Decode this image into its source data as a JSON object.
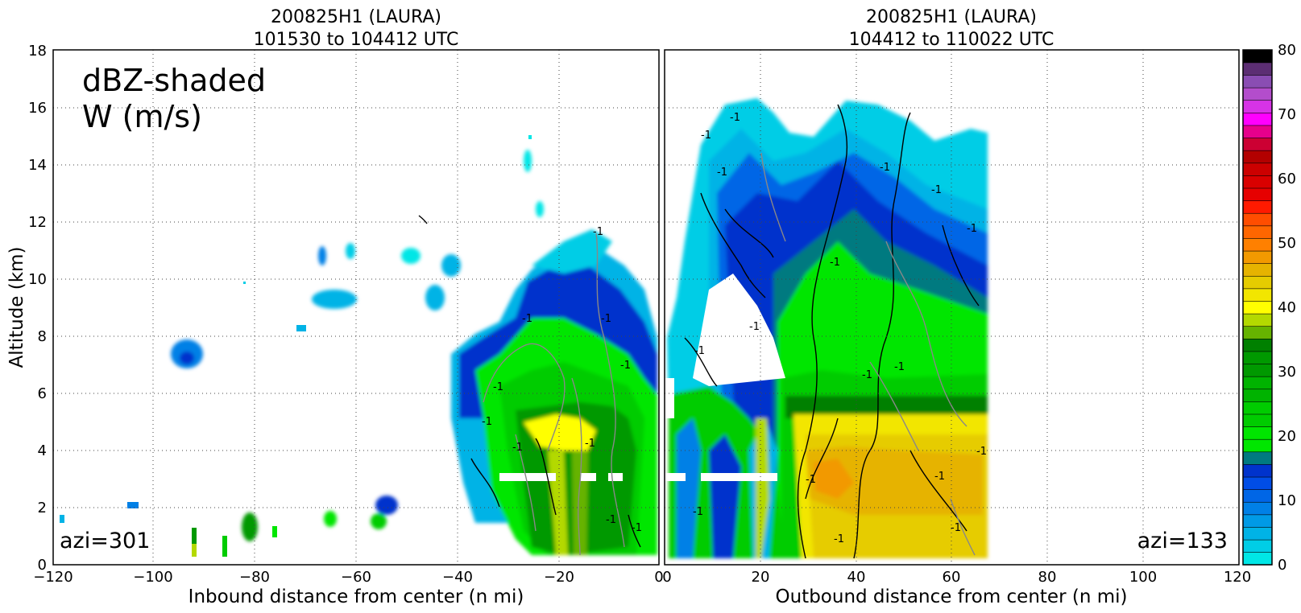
{
  "ylabel": "Altitude (km)",
  "colorbar": {
    "ticks": [
      0,
      10,
      20,
      30,
      40,
      50,
      60,
      70,
      80
    ],
    "colors": [
      "#00e6e6",
      "#00cde6",
      "#00b3e6",
      "#009ae6",
      "#0080e6",
      "#0066e6",
      "#004de6",
      "#0033cc",
      "#007a80",
      "#00e600",
      "#00e600",
      "#00cc00",
      "#00cc00",
      "#00b300",
      "#00b300",
      "#009900",
      "#009900",
      "#008000",
      "#66b300",
      "#b3d900",
      "#ffff00",
      "#f2e600",
      "#e6cc00",
      "#e6b300",
      "#f29900",
      "#ff8000",
      "#ff6600",
      "#ff4d00",
      "#ff1a00",
      "#e60000",
      "#d90000",
      "#cc0000",
      "#b30000",
      "#cc0033",
      "#e6008c",
      "#ff00ff",
      "#d633e6",
      "#b34dcc",
      "#8a4db3",
      "#5c2e73",
      "#000000"
    ]
  },
  "panels": [
    {
      "title1": "200825H1 (LAURA)",
      "title2": "101530 to 104412 UTC",
      "xlabel": "Inbound distance from center (n mi)",
      "annotation_main": "dBZ-shaded",
      "annotation_sub": "W (m/s)",
      "azi_label": "azi=301",
      "xticks": [
        "−120",
        "−100",
        "−80",
        "−60",
        "−40",
        "−20",
        "0"
      ],
      "contour_label": "-1"
    },
    {
      "title1": "200825H1 (LAURA)",
      "title2": "104412 to 110022 UTC",
      "xlabel": "Outbound distance from center (n mi)",
      "azi_label": "azi=133",
      "xticks": [
        "0",
        "20",
        "40",
        "60",
        "80",
        "100",
        "120"
      ],
      "contour_label": "-1"
    }
  ],
  "yticks": [
    "0",
    "2",
    "4",
    "6",
    "8",
    "10",
    "12",
    "14",
    "16",
    "18"
  ],
  "chart_data": [
    {
      "type": "heatmap",
      "title": "200825H1 (LAURA) 101530 to 104412 UTC",
      "xlabel": "Inbound distance from center (n mi)",
      "ylabel": "Altitude (km)",
      "xlim": [
        -120,
        0
      ],
      "ylim": [
        0,
        18
      ],
      "grid": true,
      "shaded_field": "dBZ",
      "contour_field": "W (m/s)",
      "radar_echoes": [
        {
          "x": [
            -36,
            0
          ],
          "y": [
            0.5,
            11.0
          ],
          "dbz_range": [
            10,
            38
          ]
        },
        {
          "x": [
            -93,
            -90
          ],
          "y": [
            6.8,
            7.8
          ],
          "dbz_range": [
            5,
            12
          ]
        },
        {
          "x": [
            -68,
            -62
          ],
          "y": [
            8.8,
            9.5
          ],
          "dbz_range": [
            3,
            8
          ]
        },
        {
          "x": [
            -56,
            -54
          ],
          "y": [
            1.2,
            2.5
          ],
          "dbz_range": [
            10,
            20
          ]
        }
      ],
      "bright_band_altitude_km": 5
    },
    {
      "type": "heatmap",
      "title": "200825H1 (LAURA) 104412 to 110022 UTC",
      "xlabel": "Outbound distance from center (n mi)",
      "ylabel": "Altitude (km)",
      "xlim": [
        0,
        120
      ],
      "ylim": [
        0,
        18
      ],
      "grid": true,
      "shaded_field": "dBZ",
      "contour_field": "W (m/s)",
      "radar_echoes": [
        {
          "x": [
            0,
            68
          ],
          "y": [
            0.3,
            16.2
          ],
          "dbz_range": [
            5,
            42
          ]
        }
      ],
      "bright_band_altitude_km": 5.5
    }
  ]
}
